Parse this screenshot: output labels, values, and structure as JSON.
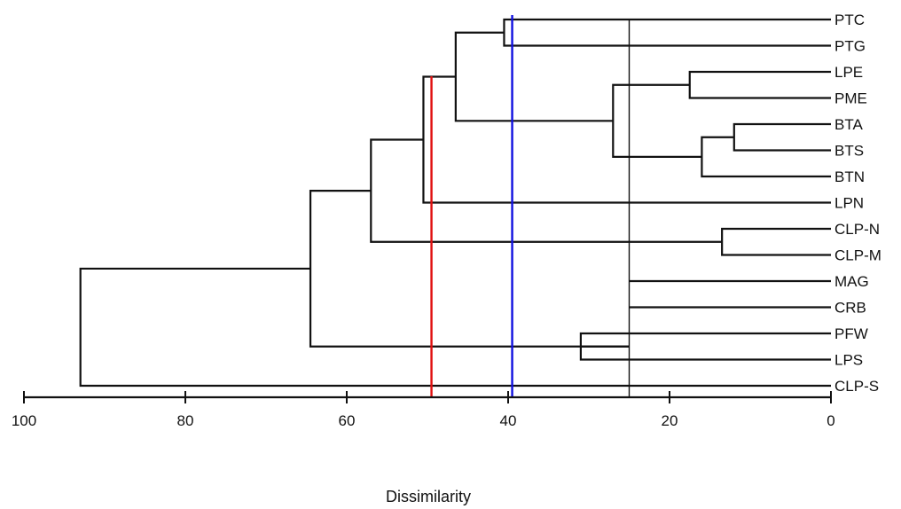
{
  "chart_data": {
    "type": "dendrogram",
    "title": "",
    "xlabel": "Dissimilarity",
    "ylabel": "",
    "xlim": [
      100,
      0
    ],
    "x_ticks": [
      100,
      80,
      60,
      40,
      20,
      0
    ],
    "grid": false,
    "leaves": [
      "PTC",
      "PTG",
      "LPE",
      "PME",
      "BTA",
      "BTS",
      "BTN",
      "LPN",
      "CLP-N",
      "CLP-M",
      "MAG",
      "CRB",
      "PFW",
      "LPS",
      "CLP-S"
    ],
    "merges": [
      {
        "left": "BTA",
        "right": "BTS",
        "dissimilarity": 12
      },
      {
        "left": "CLP-N",
        "right": "CLP-M",
        "dissimilarity": 13.5
      },
      {
        "left": "BTA+BTS",
        "right": "BTN",
        "dissimilarity": 16
      },
      {
        "left": "LPE",
        "right": "PME",
        "dissimilarity": 17.5
      },
      {
        "left": "LPE+PME",
        "right": "BTA+BTS+BTN",
        "dissimilarity": 27
      },
      {
        "left": "PFW",
        "right": "LPS",
        "dissimilarity": 31
      },
      {
        "left": "PTC",
        "right": "PTG",
        "dissimilarity": 40.5
      },
      {
        "left": "PTC+PTG",
        "right": "LPE..BTN",
        "dissimilarity": 46.5
      },
      {
        "left": "PTC..BTN",
        "right": "LPN",
        "dissimilarity": 50.5
      },
      {
        "left": "PTC..LPN",
        "right": "CLP-N+CLP-M",
        "dissimilarity": 57
      },
      {
        "left": "PTC..CLP-M",
        "right": "MAG+CRB+PFW+LPS",
        "dissimilarity": 64.5
      },
      {
        "left": "PTC..LPS",
        "right": "CLP-S",
        "dissimilarity": 93
      }
    ],
    "cut_lines": [
      {
        "dissimilarity": 49.5,
        "color": "#e01010"
      },
      {
        "dissimilarity": 39.5,
        "color": "#1010e0"
      },
      {
        "dissimilarity": 25,
        "color": "#111111"
      }
    ]
  }
}
